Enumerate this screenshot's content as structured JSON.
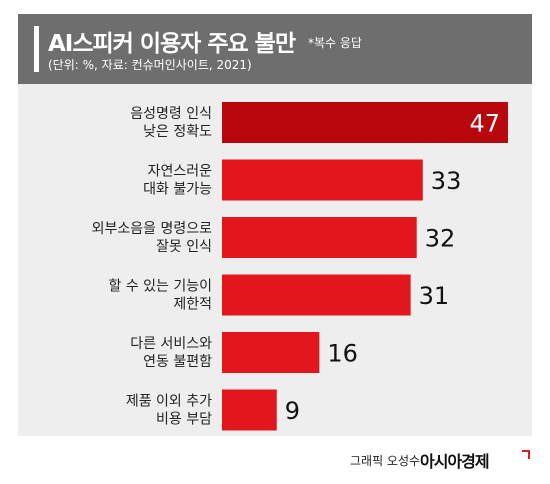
{
  "header": {
    "title": "AI스피커 이용자 주요 불만",
    "note": "*복수 응답",
    "subtitle": "(단위: %, 자료: 컨슈머인사이트, 2021)"
  },
  "footer": {
    "credit": "그래픽 오성수",
    "brand": "아시아경제"
  },
  "colors": {
    "header_bg": "#6e6e6e",
    "panel_bg": "#eeeeee",
    "bar_primary": "#e4161d",
    "bar_highlight": "#b8070d",
    "brand_accent": "#d81f26"
  },
  "chart_data": {
    "type": "bar",
    "orientation": "horizontal",
    "title": "AI스피커 이용자 주요 불만",
    "subtitle": "(단위: %, 자료: 컨슈머인사이트, 2021)",
    "categories": [
      [
        "음성명령 인식",
        "낮은 정확도"
      ],
      [
        "자연스러운",
        "대화 불가능"
      ],
      [
        "외부소음을 명령으로",
        "잘못 인식"
      ],
      [
        "할 수 있는 기능이",
        "제한적"
      ],
      [
        "다른 서비스와",
        "연동 불편함"
      ],
      [
        "제품 이외 추가",
        "비용 부담"
      ]
    ],
    "values": [
      47,
      33,
      32,
      31,
      16,
      9
    ],
    "highlight_index": 0,
    "xlim": [
      0,
      47
    ],
    "grid": false,
    "legend": "none"
  }
}
